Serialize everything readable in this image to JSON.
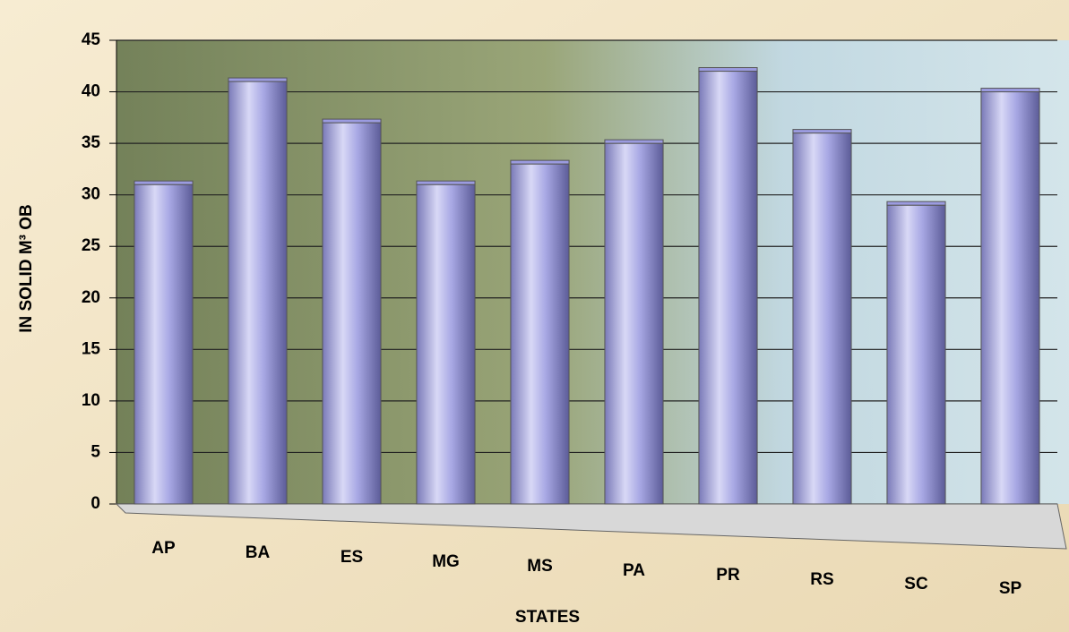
{
  "chart_data": {
    "type": "bar",
    "x_label": "STATES",
    "y_label": "IN SOLID M³ OB",
    "categories": [
      "AP",
      "BA",
      "ES",
      "MG",
      "MS",
      "PA",
      "PR",
      "RS",
      "SC",
      "SP"
    ],
    "values": [
      31,
      41,
      37,
      31,
      33,
      35,
      42,
      36,
      29,
      40
    ],
    "color": "#9b9be0",
    "ylim": [
      0,
      45
    ],
    "yticks": [
      0,
      5,
      10,
      15,
      20,
      25,
      30,
      35,
      40,
      45
    ],
    "grid": true
  }
}
